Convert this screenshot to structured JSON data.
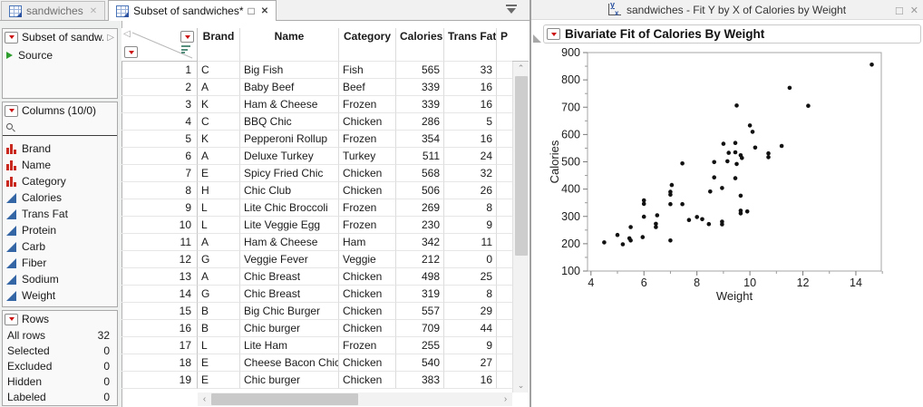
{
  "colors": {
    "red_triangle": "#cc1111",
    "nominal_icon": "#c8281e",
    "continuous_icon": "#3465a4",
    "source_green": "#2e9e2e",
    "point_color": "#111111"
  },
  "left_window": {
    "tabs": [
      {
        "label": "sandwiches"
      },
      {
        "label": "Subset of sandwiches*"
      }
    ],
    "table_panel": {
      "title": "Subset of sandw...",
      "source_label": "Source"
    },
    "columns_panel": {
      "title": "Columns (10/0)",
      "columns": [
        {
          "name": "Brand",
          "type": "nominal"
        },
        {
          "name": "Name",
          "type": "nominal"
        },
        {
          "name": "Category",
          "type": "nominal"
        },
        {
          "name": "Calories",
          "type": "continuous"
        },
        {
          "name": "Trans Fat",
          "type": "continuous"
        },
        {
          "name": "Protein",
          "type": "continuous"
        },
        {
          "name": "Carb",
          "type": "continuous"
        },
        {
          "name": "Fiber",
          "type": "continuous"
        },
        {
          "name": "Sodium",
          "type": "continuous"
        },
        {
          "name": "Weight",
          "type": "continuous"
        }
      ]
    },
    "rows_panel": {
      "title": "Rows",
      "stats": [
        {
          "label": "All rows",
          "value": "32"
        },
        {
          "label": "Selected",
          "value": "0"
        },
        {
          "label": "Excluded",
          "value": "0"
        },
        {
          "label": "Hidden",
          "value": "0"
        },
        {
          "label": "Labeled",
          "value": "0"
        }
      ]
    },
    "grid": {
      "headers": [
        "Brand",
        "Name",
        "Category",
        "Calories",
        "Trans Fat",
        "P"
      ],
      "rows": [
        [
          "1",
          "C",
          "Big Fish",
          "Fish",
          "565",
          "33"
        ],
        [
          "2",
          "A",
          "Baby Beef",
          "Beef",
          "339",
          "16"
        ],
        [
          "3",
          "K",
          "Ham & Cheese",
          "Frozen",
          "339",
          "16"
        ],
        [
          "4",
          "C",
          "BBQ Chic",
          "Chicken",
          "286",
          "5"
        ],
        [
          "5",
          "K",
          "Pepperoni Rollup",
          "Frozen",
          "354",
          "16"
        ],
        [
          "6",
          "A",
          "Deluxe Turkey",
          "Turkey",
          "511",
          "24"
        ],
        [
          "7",
          "E",
          "Spicy Fried Chic",
          "Chicken",
          "568",
          "32"
        ],
        [
          "8",
          "H",
          "Chic Club",
          "Chicken",
          "506",
          "26"
        ],
        [
          "9",
          "L",
          "Lite Chic Broccoli",
          "Frozen",
          "269",
          "8"
        ],
        [
          "10",
          "L",
          "Lite Veggie Egg",
          "Frozen",
          "230",
          "9"
        ],
        [
          "11",
          "A",
          "Ham & Cheese",
          "Ham",
          "342",
          "11"
        ],
        [
          "12",
          "G",
          "Veggie Fever",
          "Veggie",
          "212",
          "0"
        ],
        [
          "13",
          "A",
          "Chic Breast",
          "Chicken",
          "498",
          "25"
        ],
        [
          "14",
          "G",
          "Chic Breast",
          "Chicken",
          "319",
          "8"
        ],
        [
          "15",
          "B",
          "Big Chic Burger",
          "Chicken",
          "557",
          "29"
        ],
        [
          "16",
          "B",
          "Chic burger",
          "Chicken",
          "709",
          "44"
        ],
        [
          "17",
          "L",
          "Lite Ham",
          "Frozen",
          "255",
          "9"
        ],
        [
          "18",
          "E",
          "Cheese Bacon Chic",
          "Chicken",
          "540",
          "27"
        ],
        [
          "19",
          "E",
          "Chic burger",
          "Chicken",
          "383",
          "16"
        ]
      ]
    }
  },
  "right_window": {
    "title": "sandwiches - Fit Y by X of Calories by Weight",
    "outline_title": "Bivariate Fit of Calories By Weight"
  },
  "chart_data": {
    "type": "scatter",
    "title": "Bivariate Fit of Calories By Weight",
    "xlabel": "Weight",
    "ylabel": "Calories",
    "xlim": [
      3.87,
      14.96
    ],
    "ylim": [
      100,
      900
    ],
    "xticks": [
      4,
      6,
      8,
      10,
      12,
      14
    ],
    "xminorticks": [
      5,
      7,
      9,
      11,
      13,
      15
    ],
    "yticks": [
      100,
      200,
      300,
      400,
      500,
      600,
      700,
      800,
      900
    ],
    "yminorticks": [
      150,
      250,
      350,
      450,
      550,
      650,
      750,
      850
    ],
    "grid": false,
    "legend": false,
    "points": [
      [
        4.5,
        205
      ],
      [
        5.0,
        232
      ],
      [
        5.2,
        198
      ],
      [
        5.45,
        220
      ],
      [
        5.5,
        212
      ],
      [
        5.5,
        261
      ],
      [
        5.95,
        224
      ],
      [
        6.0,
        299
      ],
      [
        6.0,
        346
      ],
      [
        6.0,
        359
      ],
      [
        6.45,
        261
      ],
      [
        6.45,
        273
      ],
      [
        6.5,
        304
      ],
      [
        7.0,
        212
      ],
      [
        7.0,
        345
      ],
      [
        7.0,
        380
      ],
      [
        7.0,
        390
      ],
      [
        7.05,
        415
      ],
      [
        7.45,
        345
      ],
      [
        7.45,
        494
      ],
      [
        7.7,
        287
      ],
      [
        8.0,
        298
      ],
      [
        8.2,
        290
      ],
      [
        8.45,
        272
      ],
      [
        8.5,
        391
      ],
      [
        8.65,
        443
      ],
      [
        8.65,
        499
      ],
      [
        8.95,
        271
      ],
      [
        8.95,
        281
      ],
      [
        8.95,
        404
      ],
      [
        9.0,
        566
      ],
      [
        9.15,
        502
      ],
      [
        9.2,
        533
      ],
      [
        9.45,
        440
      ],
      [
        9.45,
        535
      ],
      [
        9.45,
        569
      ],
      [
        9.5,
        492
      ],
      [
        9.5,
        706
      ],
      [
        9.65,
        311
      ],
      [
        9.65,
        321
      ],
      [
        9.65,
        376
      ],
      [
        9.65,
        524
      ],
      [
        9.7,
        514
      ],
      [
        9.9,
        318
      ],
      [
        10.0,
        633
      ],
      [
        10.1,
        610
      ],
      [
        10.2,
        552
      ],
      [
        10.7,
        517
      ],
      [
        10.7,
        531
      ],
      [
        11.2,
        558
      ],
      [
        11.5,
        771
      ],
      [
        12.2,
        705
      ],
      [
        14.6,
        856
      ]
    ]
  }
}
